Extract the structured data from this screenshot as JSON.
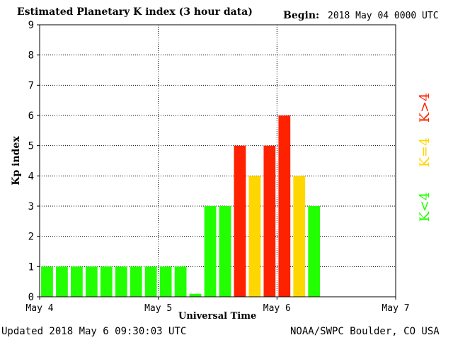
{
  "header": {
    "title": "Estimated Planetary K index (3 hour data)",
    "begin_label": "Begin:",
    "begin_value": "2018 May 04 0000 UTC"
  },
  "footer": {
    "updated": "Updated 2018 May  6 09:30:03 UTC",
    "credit": "NOAA/SWPC Boulder, CO USA"
  },
  "chart_data": {
    "type": "bar",
    "title": "Estimated Planetary K index (3 hour data)",
    "xlabel": "Universal Time",
    "ylabel": "Kp index",
    "ylim": [
      0,
      9
    ],
    "yticks": [
      "0",
      "1",
      "2",
      "3",
      "4",
      "5",
      "6",
      "7",
      "8",
      "9"
    ],
    "xticks": [
      "May 4",
      "May 5",
      "May 6",
      "May 7"
    ],
    "grid": true,
    "bar_count_range": 24,
    "values": [
      1,
      1,
      1,
      1,
      1,
      1,
      1,
      1,
      1,
      1,
      0.1,
      3,
      3,
      5,
      4,
      5,
      6,
      4,
      3
    ],
    "colors": {
      "low": "#22ff00",
      "mid": "#ffd700",
      "high": "#ff2200"
    },
    "legend": [
      {
        "label": "K<4",
        "color": "#22ff00"
      },
      {
        "label": "K=4",
        "color": "#ffd700"
      },
      {
        "label": "K>4",
        "color": "#ff2200"
      }
    ]
  }
}
